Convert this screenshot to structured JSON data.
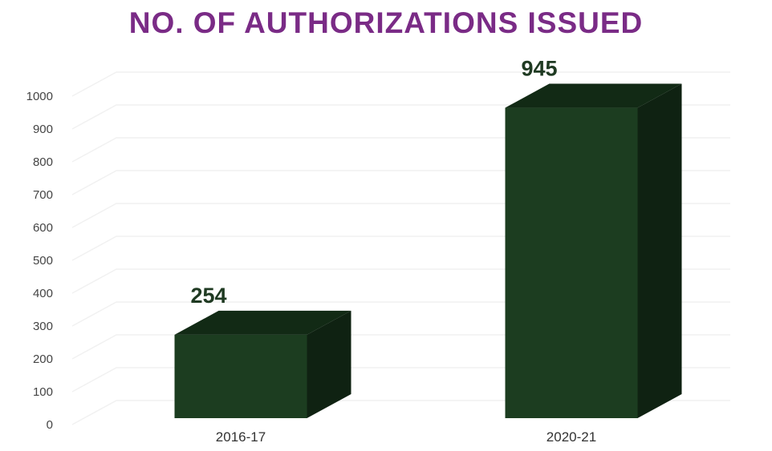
{
  "chart_data": {
    "type": "bar",
    "title": "NO. OF AUTHORIZATIONS ISSUED",
    "categories": [
      "2016-17",
      "2020-21"
    ],
    "values": [
      254,
      945
    ],
    "data_labels": [
      "254",
      "945"
    ],
    "ylim": [
      0,
      1000
    ],
    "yticks": [
      "0",
      "100",
      "200",
      "300",
      "400",
      "500",
      "600",
      "700",
      "800",
      "900",
      "1000"
    ],
    "grid": true,
    "legend": "none",
    "colors": {
      "front": "#1c3d20",
      "top": "#122a15",
      "side": "#0f2212",
      "title": "#7a2b86"
    }
  }
}
